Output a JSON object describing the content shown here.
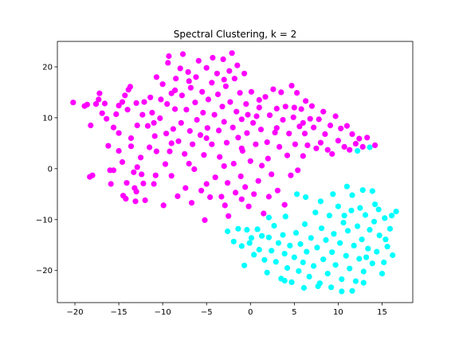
{
  "chart_data": {
    "type": "scatter",
    "title": "Spectral Clustering, k = 2",
    "xlabel": "",
    "ylabel": "",
    "xlim": [
      -22.0,
      18.5
    ],
    "ylim": [
      -26.3,
      25.0
    ],
    "xticks": [
      -20,
      -15,
      -10,
      -5,
      0,
      5,
      10,
      15
    ],
    "yticks": [
      -20,
      -10,
      0,
      10,
      20
    ],
    "grid": false,
    "legend": "none",
    "series": [
      {
        "color": "#ff00ff",
        "points": [
          [
            -20.2,
            13.0
          ],
          [
            -18.9,
            12.3
          ],
          [
            -18.6,
            12.6
          ],
          [
            -18.3,
            -1.6
          ],
          [
            -18.0,
            -1.3
          ],
          [
            -18.2,
            8.5
          ],
          [
            -17.6,
            12.7
          ],
          [
            -17.3,
            13.6
          ],
          [
            -17.2,
            14.8
          ],
          [
            -16.9,
            10.9
          ],
          [
            -16.6,
            12.8
          ],
          [
            -16.4,
            9.8
          ],
          [
            -16.2,
            4.5
          ],
          [
            -16.0,
            -0.3
          ],
          [
            -15.9,
            -3.0
          ],
          [
            -15.6,
            -0.3
          ],
          [
            -15.6,
            8.1
          ],
          [
            -15.3,
            10.7
          ],
          [
            -15.0,
            12.4
          ],
          [
            -15.0,
            7.0
          ],
          [
            -14.6,
            13.1
          ],
          [
            -14.3,
            14.4
          ],
          [
            -14.6,
            1.3
          ],
          [
            -14.5,
            -5.3
          ],
          [
            -14.2,
            -5.9
          ],
          [
            -14.1,
            -2.8
          ],
          [
            -14.0,
            11.6
          ],
          [
            -13.9,
            15.5
          ],
          [
            -13.7,
            16.1
          ],
          [
            -13.6,
            6.0
          ],
          [
            -13.6,
            4.4
          ],
          [
            -13.3,
            -0.7
          ],
          [
            -13.2,
            -3.8
          ],
          [
            -13.1,
            -6.4
          ],
          [
            -12.9,
            8.5
          ],
          [
            -12.9,
            0.3
          ],
          [
            -12.5,
            2.2
          ],
          [
            -12.4,
            -1.1
          ],
          [
            -12.3,
            10.6
          ],
          [
            -12.1,
            13.1
          ],
          [
            -12.2,
            -2.9
          ],
          [
            -12.0,
            -6.2
          ],
          [
            -11.7,
            8.4
          ],
          [
            -11.5,
            4.2
          ],
          [
            -11.4,
            14.0
          ],
          [
            -11.2,
            11.0
          ],
          [
            -10.9,
            6.4
          ],
          [
            -10.8,
            -1.3
          ],
          [
            -10.7,
            3.4
          ],
          [
            -10.7,
            18.0
          ],
          [
            -10.3,
            9.9
          ],
          [
            -10.2,
            13.6
          ],
          [
            -10.0,
            16.6
          ],
          [
            -9.9,
            -7.2
          ],
          [
            -9.7,
            0.9
          ],
          [
            -9.6,
            6.9
          ],
          [
            -9.5,
            12.7
          ],
          [
            -9.4,
            20.8
          ],
          [
            -9.3,
            22.1
          ],
          [
            -9.2,
            3.4
          ],
          [
            -9.0,
            -1.4
          ],
          [
            -8.8,
            7.8
          ],
          [
            -8.6,
            11.7
          ],
          [
            -8.6,
            15.4
          ],
          [
            -8.5,
            17.7
          ],
          [
            -8.3,
            -5.4
          ],
          [
            -8.2,
            5.4
          ],
          [
            -8.0,
            19.7
          ],
          [
            -7.9,
            9.0
          ],
          [
            -7.8,
            14.4
          ],
          [
            -7.7,
            22.5
          ],
          [
            -7.5,
            2.9
          ],
          [
            -7.4,
            -3.8
          ],
          [
            -7.3,
            11.6
          ],
          [
            -7.1,
            19.0
          ],
          [
            -6.9,
            7.4
          ],
          [
            -6.8,
            15.9
          ],
          [
            -6.7,
            -6.7
          ],
          [
            -6.6,
            4.8
          ],
          [
            -6.4,
            -0.1
          ],
          [
            -6.3,
            13.0
          ],
          [
            -6.2,
            18.0
          ],
          [
            -6.1,
            9.6
          ],
          [
            -5.9,
            21.2
          ],
          [
            -5.7,
            6.6
          ],
          [
            -5.6,
            -4.3
          ],
          [
            -5.5,
            15.1
          ],
          [
            -5.4,
            11.0
          ],
          [
            -5.3,
            2.7
          ],
          [
            -5.2,
            -10.1
          ],
          [
            -5.0,
            19.8
          ],
          [
            -4.9,
            8.0
          ],
          [
            -4.8,
            13.6
          ],
          [
            -4.6,
            -5.6
          ],
          [
            -4.4,
            16.9
          ],
          [
            -4.4,
            4.8
          ],
          [
            -4.3,
            21.8
          ],
          [
            -4.1,
            10.6
          ],
          [
            -4.0,
            -1.7
          ],
          [
            -3.8,
            18.7
          ],
          [
            -3.7,
            14.6
          ],
          [
            -3.6,
            7.5
          ],
          [
            -3.5,
            2.3
          ],
          [
            -3.3,
            -5.5
          ],
          [
            -3.2,
            12.2
          ],
          [
            -3.1,
            21.5
          ],
          [
            -3.0,
            9.2
          ],
          [
            -2.9,
            -7.2
          ],
          [
            -2.8,
            16.2
          ],
          [
            -2.7,
            5.1
          ],
          [
            -2.6,
            -2.8
          ],
          [
            -2.5,
            -9.3
          ],
          [
            -2.4,
            19.2
          ],
          [
            -2.3,
            13.1
          ],
          [
            -2.1,
            22.7
          ],
          [
            -2.0,
            8.1
          ],
          [
            -1.9,
            1.0
          ],
          [
            -1.8,
            17.7
          ],
          [
            -1.7,
            -4.7
          ],
          [
            -1.6,
            11.2
          ],
          [
            -1.5,
            20.3
          ],
          [
            -1.4,
            6.1
          ],
          [
            -1.2,
            14.9
          ],
          [
            -1.1,
            -1.5
          ],
          [
            -1.0,
            9.7
          ],
          [
            -0.9,
            3.5
          ],
          [
            -0.7,
            18.7
          ],
          [
            -0.6,
            -3.6
          ],
          [
            -0.5,
            12.7
          ],
          [
            -0.4,
            7.0
          ],
          [
            -0.3,
            10.6
          ],
          [
            -0.2,
            -7.4
          ],
          [
            0.0,
            1.5
          ],
          [
            0.1,
            15.1
          ],
          [
            0.3,
            9.0
          ],
          [
            0.4,
            -5.0
          ],
          [
            0.6,
            4.8
          ],
          [
            0.7,
            10.3
          ],
          [
            0.9,
            -2.4
          ],
          [
            1.0,
            13.5
          ],
          [
            1.2,
            7.7
          ],
          [
            1.3,
            0.6
          ],
          [
            1.5,
            -8.8
          ],
          [
            1.7,
            14.1
          ],
          [
            1.9,
            5.2
          ],
          [
            2.1,
            -5.5
          ],
          [
            2.2,
            10.5
          ],
          [
            2.4,
            -1.1
          ],
          [
            2.6,
            15.6
          ],
          [
            2.8,
            7.1
          ],
          [
            3.0,
            11.8
          ],
          [
            3.1,
            -4.3
          ],
          [
            3.3,
            4.3
          ],
          [
            3.5,
            15.0
          ],
          [
            3.7,
            9.6
          ],
          [
            3.9,
            -7.1
          ],
          [
            4.0,
            12.2
          ],
          [
            4.2,
            2.6
          ],
          [
            4.4,
            6.9
          ],
          [
            4.6,
            -1.3
          ],
          [
            4.7,
            16.3
          ],
          [
            4.9,
            10.1
          ],
          [
            5.1,
            4.8
          ],
          [
            5.3,
            14.9
          ],
          [
            5.4,
            -0.3
          ],
          [
            5.6,
            8.3
          ],
          [
            5.8,
            11.7
          ],
          [
            6.0,
            2.5
          ],
          [
            6.2,
            6.9
          ],
          [
            6.3,
            13.3
          ],
          [
            6.5,
            4.6
          ],
          [
            6.8,
            9.8
          ],
          [
            7.0,
            12.3
          ],
          [
            7.2,
            8.1
          ],
          [
            7.5,
            4.0
          ],
          [
            7.8,
            9.7
          ],
          [
            8.0,
            5.1
          ],
          [
            8.3,
            11.2
          ],
          [
            8.5,
            6.8
          ],
          [
            8.8,
            3.7
          ],
          [
            9.1,
            8.5
          ],
          [
            9.3,
            2.9
          ],
          [
            9.7,
            10.3
          ],
          [
            10.0,
            5.5
          ],
          [
            10.3,
            7.9
          ],
          [
            10.7,
            4.3
          ],
          [
            11.0,
            8.4
          ],
          [
            11.3,
            3.7
          ],
          [
            11.6,
            6.8
          ],
          [
            12.0,
            4.9
          ],
          [
            12.4,
            5.9
          ],
          [
            12.8,
            4.3
          ],
          [
            13.3,
            6.1
          ],
          [
            14.2,
            4.6
          ],
          [
            -13.0,
            12.9
          ],
          [
            -11.0,
            9.0
          ],
          [
            -9.0,
            5.0
          ],
          [
            -7.0,
            1.0
          ],
          [
            -5.0,
            -3.0
          ],
          [
            -3.0,
            17.5
          ],
          [
            -1.0,
            -6.0
          ],
          [
            1.0,
            12.0
          ],
          [
            3.0,
            8.0
          ],
          [
            5.0,
            12.0
          ],
          [
            -15.0,
            3.5
          ],
          [
            -13.0,
            -4.5
          ],
          [
            -11.0,
            -3.0
          ],
          [
            -9.0,
            14.8
          ],
          [
            -7.0,
            17.2
          ],
          [
            -5.0,
            6.0
          ],
          [
            -3.0,
            0.5
          ],
          [
            -1.0,
            4.0
          ],
          [
            2.0,
            2.0
          ],
          [
            6.0,
            9.0
          ]
        ]
      },
      {
        "color": "#00ffff",
        "points": [
          [
            -2.6,
            -12.3
          ],
          [
            -1.9,
            -14.3
          ],
          [
            -1.4,
            -11.8
          ],
          [
            -1.0,
            -15.2
          ],
          [
            -0.7,
            -19.0
          ],
          [
            -0.4,
            -12.0
          ],
          [
            0.1,
            -13.6
          ],
          [
            0.4,
            -16.9
          ],
          [
            0.8,
            -11.9
          ],
          [
            1.0,
            -15.9
          ],
          [
            1.3,
            -13.2
          ],
          [
            1.6,
            -17.9
          ],
          [
            1.9,
            -20.4
          ],
          [
            2.1,
            -13.5
          ],
          [
            2.4,
            -16.1
          ],
          [
            2.7,
            -11.2
          ],
          [
            2.9,
            -18.3
          ],
          [
            3.2,
            -14.6
          ],
          [
            3.5,
            -21.6
          ],
          [
            3.7,
            -13.0
          ],
          [
            3.9,
            -16.7
          ],
          [
            4.2,
            -19.5
          ],
          [
            4.5,
            -15.1
          ],
          [
            4.7,
            -22.3
          ],
          [
            5.0,
            -17.4
          ],
          [
            5.2,
            -12.6
          ],
          [
            5.5,
            -20.1
          ],
          [
            5.7,
            -14.8
          ],
          [
            6.0,
            -18.4
          ],
          [
            6.2,
            -10.9
          ],
          [
            6.4,
            -16.3
          ],
          [
            6.7,
            -21.2
          ],
          [
            6.9,
            -13.6
          ],
          [
            7.2,
            -19.1
          ],
          [
            7.4,
            -8.6
          ],
          [
            7.6,
            -15.5
          ],
          [
            7.9,
            -22.5
          ],
          [
            8.1,
            -11.7
          ],
          [
            8.3,
            -17.8
          ],
          [
            8.6,
            -14.0
          ],
          [
            8.8,
            -20.6
          ],
          [
            9.0,
            -9.2
          ],
          [
            9.3,
            -16.4
          ],
          [
            9.5,
            -12.8
          ],
          [
            9.7,
            -18.9
          ],
          [
            10.0,
            -7.4
          ],
          [
            10.2,
            -14.6
          ],
          [
            10.4,
            -21.7
          ],
          [
            10.6,
            -10.6
          ],
          [
            10.9,
            -17.1
          ],
          [
            11.1,
            -12.2
          ],
          [
            11.3,
            -19.6
          ],
          [
            11.5,
            -8.2
          ],
          [
            11.8,
            -15.1
          ],
          [
            12.0,
            -22.1
          ],
          [
            12.2,
            -11.3
          ],
          [
            12.4,
            -17.7
          ],
          [
            12.7,
            -13.9
          ],
          [
            12.9,
            -20.2
          ],
          [
            13.1,
            -9.1
          ],
          [
            13.4,
            -15.7
          ],
          [
            13.6,
            -12.0
          ],
          [
            13.9,
            -18.6
          ],
          [
            14.1,
            -10.4
          ],
          [
            14.4,
            -16.3
          ],
          [
            14.7,
            -13.1
          ],
          [
            15.0,
            -20.6
          ],
          [
            15.3,
            -9.7
          ],
          [
            15.6,
            -15.3
          ],
          [
            15.9,
            -11.8
          ],
          [
            16.2,
            -17.0
          ],
          [
            16.6,
            -8.4
          ],
          [
            11.0,
            -3.5
          ],
          [
            12.8,
            -4.2
          ],
          [
            13.9,
            -4.4
          ],
          [
            12.2,
            3.5
          ],
          [
            13.6,
            4.2
          ],
          [
            10.4,
            -24.1
          ],
          [
            7.7,
            -23.1
          ],
          [
            12.9,
            -22.4
          ],
          [
            15.2,
            -18.4
          ],
          [
            16.1,
            -9.2
          ],
          [
            14.6,
            -8.0
          ],
          [
            6.3,
            -5.6
          ],
          [
            5.3,
            -5.0
          ],
          [
            -0.1,
            -14.6
          ],
          [
            2.1,
            -9.6
          ],
          [
            4.0,
            -9.4
          ],
          [
            8.0,
            -6.4
          ],
          [
            9.4,
            -5.0
          ],
          [
            11.6,
            -5.2
          ],
          [
            10.7,
            -9.2
          ],
          [
            12.5,
            -7.7
          ],
          [
            14.2,
            -7.0
          ],
          [
            15.4,
            -13.9
          ],
          [
            13.2,
            -17.4
          ],
          [
            11.6,
            -24.0
          ],
          [
            9.2,
            -23.3
          ],
          [
            6.1,
            -23.4
          ],
          [
            3.9,
            -22.0
          ]
        ]
      }
    ]
  }
}
